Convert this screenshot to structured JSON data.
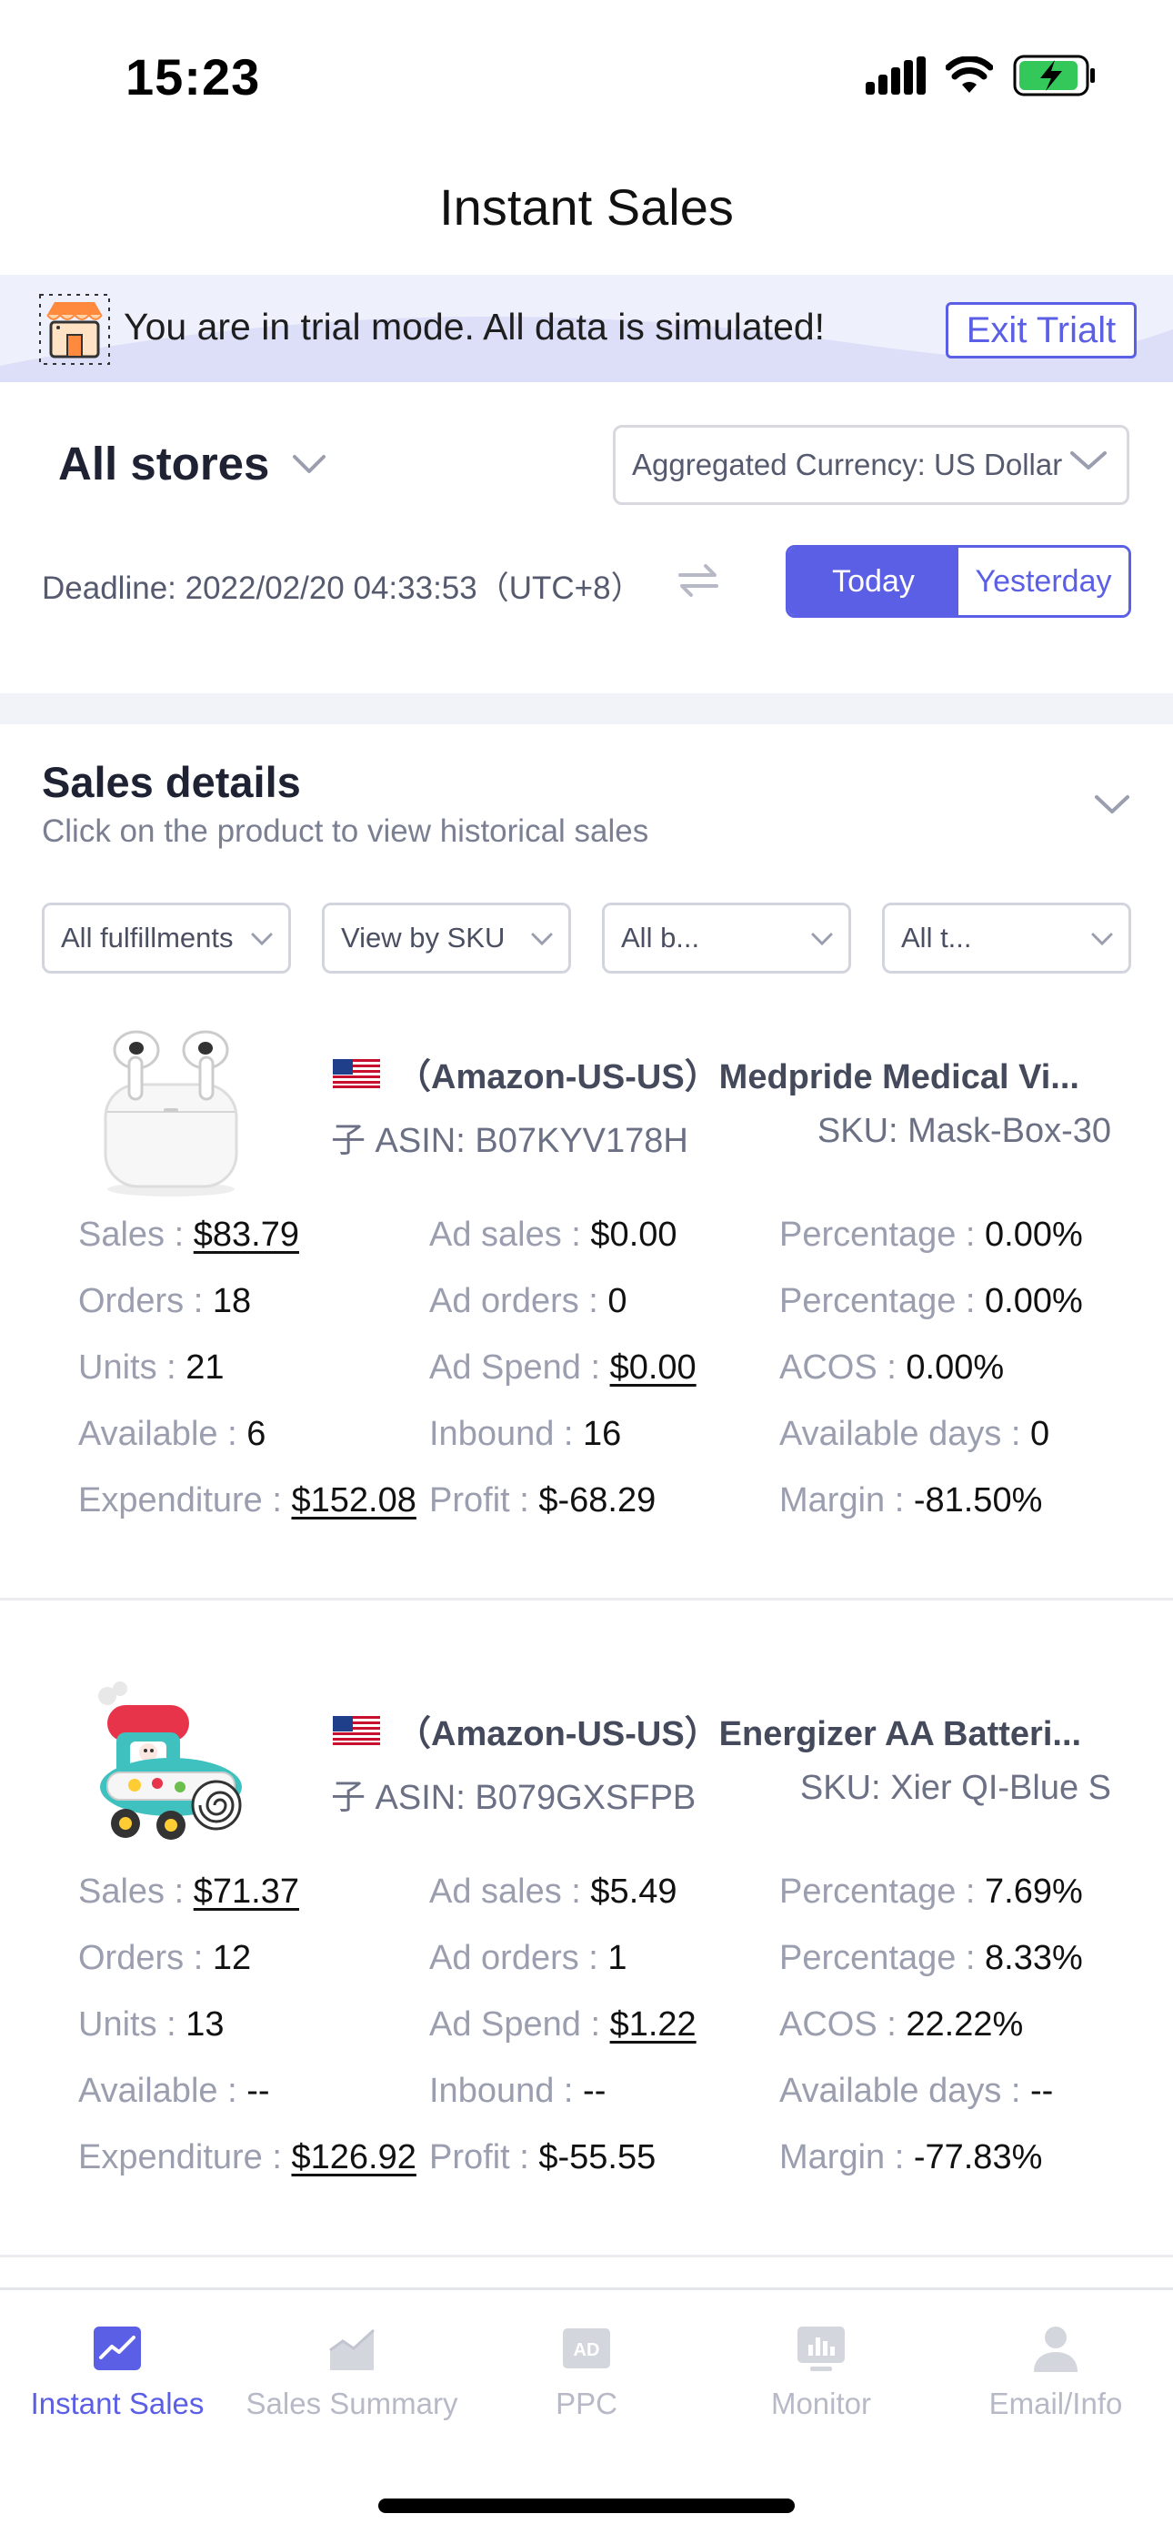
{
  "status_bar": {
    "time": "15:23"
  },
  "nav": {
    "title": "Instant Sales"
  },
  "trial": {
    "message": "You are in trial mode. All data is simulated!",
    "exit_label": "Exit Trialt"
  },
  "store": {
    "label": "All stores"
  },
  "currency": {
    "label": "Aggregated Currency: US Dollar"
  },
  "deadline": {
    "text": "Deadline: 2022/02/20 04:33:53（UTC+8）"
  },
  "day_toggle": {
    "today": "Today",
    "yesterday": "Yesterday",
    "selected": "Today"
  },
  "sales_details": {
    "title": "Sales details",
    "subtitle": "Click on the product to view historical sales"
  },
  "filters": [
    "All fulfillments",
    "View by SKU",
    "All b...",
    "All t..."
  ],
  "products": [
    {
      "name": "（Amazon-US-US）Medpride Medical Vi...",
      "asin": "子 ASIN: B07KYV178H",
      "sku": "SKU: Mask-Box-30",
      "metrics": {
        "sales": {
          "k": "Sales : ",
          "v": "$83.79"
        },
        "ad_sales": {
          "k": "Ad sales : ",
          "v": "$0.00"
        },
        "percentage_1": {
          "k": "Percentage : ",
          "v": "0.00%"
        },
        "orders": {
          "k": "Orders : ",
          "v": "18"
        },
        "ad_orders": {
          "k": "Ad orders : ",
          "v": "0"
        },
        "percentage_2": {
          "k": "Percentage : ",
          "v": "0.00%"
        },
        "units": {
          "k": "Units : ",
          "v": "21"
        },
        "ad_spend": {
          "k": "Ad Spend : ",
          "v": "$0.00"
        },
        "acos": {
          "k": "ACOS : ",
          "v": "0.00%"
        },
        "available": {
          "k": "Available : ",
          "v": "6"
        },
        "inbound": {
          "k": "Inbound : ",
          "v": "16"
        },
        "available_days": {
          "k": "Available days : ",
          "v": "0"
        },
        "expenditure": {
          "k": "Expenditure : ",
          "v": "$152.08"
        },
        "profit": {
          "k": "Profit : ",
          "v": "$-68.29"
        },
        "margin": {
          "k": "Margin : ",
          "v": "-81.50%"
        }
      }
    },
    {
      "name": "（Amazon-US-US）Energizer AA Batteri...",
      "asin": "子 ASIN: B079GXSFPB",
      "sku": "SKU: Xier QI-Blue S",
      "metrics": {
        "sales": {
          "k": "Sales : ",
          "v": "$71.37"
        },
        "ad_sales": {
          "k": "Ad sales : ",
          "v": "$5.49"
        },
        "percentage_1": {
          "k": "Percentage : ",
          "v": "7.69%"
        },
        "orders": {
          "k": "Orders : ",
          "v": "12"
        },
        "ad_orders": {
          "k": "Ad orders : ",
          "v": "1"
        },
        "percentage_2": {
          "k": "Percentage : ",
          "v": "8.33%"
        },
        "units": {
          "k": "Units : ",
          "v": "13"
        },
        "ad_spend": {
          "k": "Ad Spend : ",
          "v": "$1.22"
        },
        "acos": {
          "k": "ACOS : ",
          "v": "22.22%"
        },
        "available": {
          "k": "Available : ",
          "v": "--"
        },
        "inbound": {
          "k": "Inbound : ",
          "v": "--"
        },
        "available_days": {
          "k": "Available days : ",
          "v": "--"
        },
        "expenditure": {
          "k": "Expenditure : ",
          "v": "$126.92"
        },
        "profit": {
          "k": "Profit : ",
          "v": "$-55.55"
        },
        "margin": {
          "k": "Margin : ",
          "v": "-77.83%"
        }
      }
    }
  ],
  "tabs": [
    {
      "label": "Instant Sales",
      "icon": "chart-line-icon",
      "active": true
    },
    {
      "label": "Sales Summary",
      "icon": "area-chart-icon",
      "active": false
    },
    {
      "label": "PPC",
      "icon": "ad-icon",
      "active": false
    },
    {
      "label": "Monitor",
      "icon": "monitor-icon",
      "active": false
    },
    {
      "label": "Email/Info",
      "icon": "user-icon",
      "active": false
    }
  ],
  "colors": {
    "accent": "#5b5fe6",
    "banner_bg": "#eef0fc",
    "muted_label": "#9a9eae",
    "battery_green": "#34c759"
  }
}
